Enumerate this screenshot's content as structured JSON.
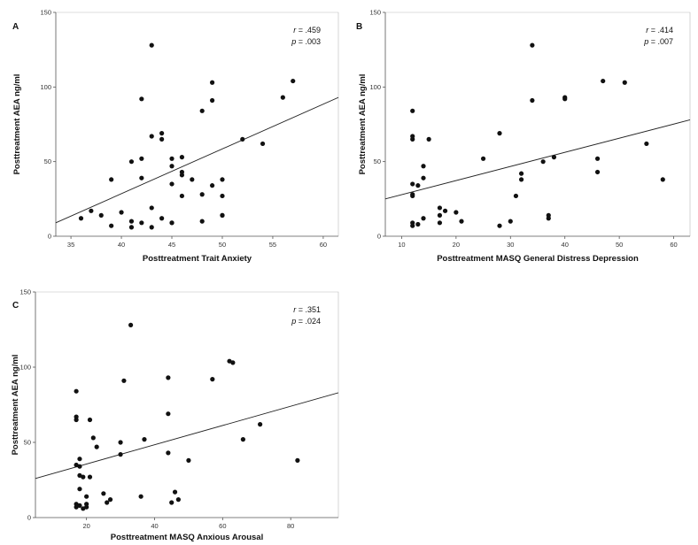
{
  "chart_data": [
    {
      "panel": "A",
      "type": "scatter",
      "xlabel": "Posttreatment Trait Anxiety",
      "ylabel": "Posttreatment AEA ng/ml",
      "xlim": [
        33.5,
        61.5
      ],
      "ylim": [
        0,
        150
      ],
      "xticks": [
        35,
        40,
        45,
        50,
        55,
        60
      ],
      "yticks": [
        0,
        50,
        100,
        150
      ],
      "r_label": "r",
      "r_value": " = .459",
      "p_label": "p",
      "p_value": " = .003",
      "regression": {
        "x": [
          33.5,
          61.5
        ],
        "y": [
          9,
          93
        ]
      },
      "x": [
        36,
        37,
        38,
        39,
        39,
        40,
        41,
        41,
        41,
        42,
        42,
        42,
        42,
        43,
        43,
        43,
        43,
        44,
        44,
        44,
        45,
        45,
        45,
        45,
        45,
        46,
        46,
        46,
        46,
        47,
        48,
        48,
        48,
        49,
        49,
        49,
        50,
        50,
        50,
        50,
        52,
        54,
        56,
        57
      ],
      "y": [
        12,
        17,
        14,
        38,
        7,
        16,
        50,
        10,
        6,
        92,
        52,
        39,
        9,
        128,
        67,
        19,
        6,
        69,
        65,
        12,
        52,
        47,
        35,
        9,
        9,
        53,
        43,
        41,
        27,
        38,
        84,
        28,
        10,
        103,
        91,
        34,
        38,
        27,
        14,
        14,
        65,
        62,
        93,
        104
      ]
    },
    {
      "panel": "B",
      "type": "scatter",
      "xlabel": "Posttreatment MASQ General Distress Depression",
      "ylabel": "Posttreatment AEA ng/ml",
      "xlim": [
        7,
        63
      ],
      "ylim": [
        0,
        150
      ],
      "xticks": [
        10,
        20,
        30,
        40,
        50,
        60
      ],
      "yticks": [
        0,
        50,
        100,
        150
      ],
      "r_label": "r",
      "r_value": " = .414",
      "p_label": "p",
      "p_value": " = .007",
      "regression": {
        "x": [
          7,
          63
        ],
        "y": [
          25,
          78
        ]
      },
      "x": [
        12,
        12,
        12,
        12,
        12,
        12,
        12,
        12,
        13,
        13,
        14,
        14,
        14,
        15,
        17,
        17,
        17,
        18,
        20,
        21,
        25,
        28,
        28,
        30,
        31,
        32,
        32,
        34,
        34,
        36,
        37,
        37,
        38,
        40,
        40,
        46,
        46,
        47,
        51,
        55,
        58
      ],
      "y": [
        84,
        67,
        65,
        35,
        28,
        27,
        9,
        7,
        34,
        8,
        47,
        39,
        12,
        65,
        19,
        14,
        9,
        17,
        16,
        10,
        52,
        69,
        7,
        10,
        27,
        42,
        38,
        128,
        91,
        50,
        14,
        12,
        53,
        93,
        92,
        52,
        43,
        104,
        103,
        62,
        38
      ]
    },
    {
      "panel": "C",
      "type": "scatter",
      "xlabel": "Posttreatment MASQ Anxious Arousal",
      "ylabel": "Posttreatment AEA ng/ml",
      "xlim": [
        5,
        94
      ],
      "ylim": [
        0,
        150
      ],
      "xticks": [
        20,
        40,
        60,
        80
      ],
      "yticks": [
        0,
        50,
        100,
        150
      ],
      "r_label": "r",
      "r_value": " = .351",
      "p_label": "p",
      "p_value": " = .024",
      "regression": {
        "x": [
          5,
          94
        ],
        "y": [
          26,
          83
        ]
      },
      "x": [
        17,
        17,
        17,
        17,
        17,
        17,
        18,
        18,
        18,
        18,
        18,
        19,
        19,
        20,
        20,
        20,
        21,
        21,
        22,
        23,
        25,
        26,
        27,
        30,
        30,
        31,
        33,
        36,
        37,
        44,
        44,
        44,
        45,
        46,
        47,
        50,
        57,
        62,
        63,
        66,
        71,
        82
      ],
      "y": [
        84,
        67,
        65,
        35,
        9,
        7,
        39,
        34,
        28,
        19,
        8,
        27,
        6,
        14,
        9,
        7,
        65,
        27,
        53,
        47,
        16,
        10,
        12,
        50,
        42,
        91,
        128,
        14,
        52,
        93,
        69,
        43,
        10,
        17,
        12,
        38,
        92,
        104,
        103,
        52,
        62,
        38
      ]
    }
  ]
}
